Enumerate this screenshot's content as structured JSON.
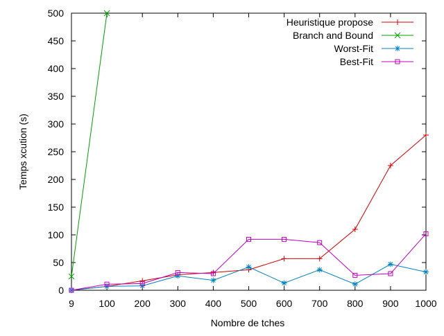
{
  "chart_data": {
    "type": "line",
    "xlabel": "Nombre de tches",
    "ylabel": "Temps xcution (s)",
    "x_ticks": [
      "9",
      "100",
      "200",
      "300",
      "400",
      "500",
      "600",
      "700",
      "800",
      "900",
      "1000"
    ],
    "y_ticks": [
      0,
      50,
      100,
      150,
      200,
      250,
      300,
      350,
      400,
      450,
      500
    ],
    "ylim": [
      0,
      500
    ],
    "grid": false,
    "legend_position": "top-right",
    "series": [
      {
        "name": "Heuristique propose",
        "color": "#d00000",
        "marker": "plus",
        "values": [
          0,
          7,
          17,
          28,
          32,
          37,
          57,
          57,
          110,
          225,
          280
        ]
      },
      {
        "name": "Branch and Bound",
        "color": "#00a000",
        "marker": "x",
        "values": [
          25,
          500
        ]
      },
      {
        "name": "Worst-Fit",
        "color": "#0080c0",
        "marker": "star",
        "values": [
          0,
          7,
          8,
          26,
          18,
          42,
          13,
          37,
          11,
          47,
          33
        ]
      },
      {
        "name": "Best-Fit",
        "color": "#c000c0",
        "marker": "square",
        "values": [
          0,
          11,
          12,
          32,
          30,
          92,
          92,
          86,
          27,
          30,
          102
        ]
      }
    ]
  }
}
